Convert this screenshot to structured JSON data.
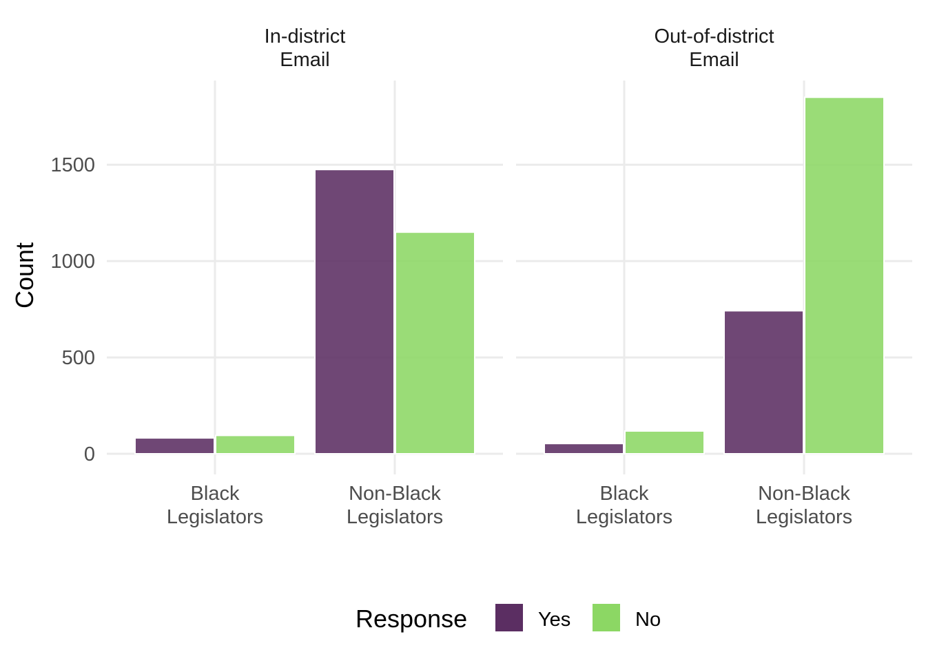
{
  "colors": {
    "yes": "#5B2E62",
    "no": "#8CD764",
    "grid": "#EBEBEB"
  },
  "chart_data": {
    "type": "bar",
    "ylabel": "Count",
    "xlabel": "",
    "ylim": [
      0,
      1900
    ],
    "y_ticks": [
      0,
      500,
      1000,
      1500
    ],
    "y_tick_labels": [
      "0",
      "500",
      "1000",
      "1500"
    ],
    "categories": [
      "Black Legislators",
      "Non-Black Legislators"
    ],
    "category_label_lines": [
      [
        "Black",
        "Legislators"
      ],
      [
        "Non-Black",
        "Legislators"
      ]
    ],
    "grid": true,
    "legend": {
      "title": "Response",
      "position": "bottom",
      "entries": [
        "Yes",
        "No"
      ]
    },
    "facets": [
      {
        "title_lines": [
          "In-district",
          "Email"
        ],
        "series": [
          {
            "name": "Yes",
            "values": [
              82,
              1475
            ]
          },
          {
            "name": "No",
            "values": [
              95,
              1150
            ]
          }
        ]
      },
      {
        "title_lines": [
          "Out-of-district",
          "Email"
        ],
        "series": [
          {
            "name": "Yes",
            "values": [
              53,
              742
            ]
          },
          {
            "name": "No",
            "values": [
              118,
              1850
            ]
          }
        ]
      }
    ]
  }
}
